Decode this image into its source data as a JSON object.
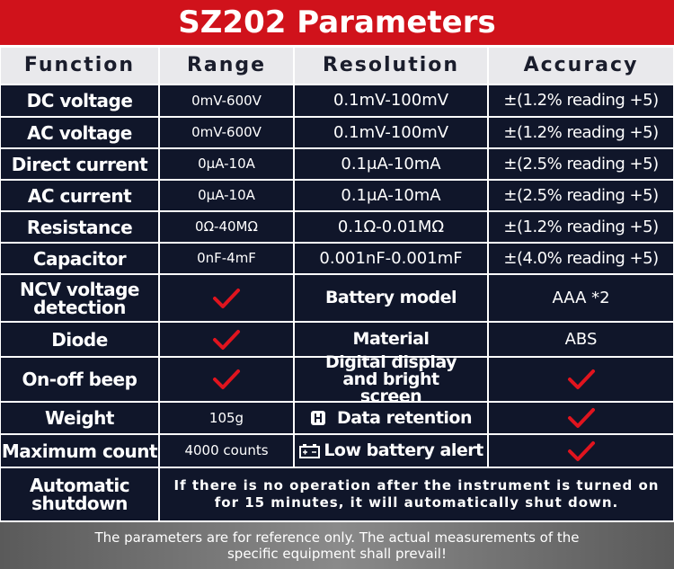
{
  "header": {
    "title": "SZ202 Parameters"
  },
  "table": {
    "columns": [
      "Function",
      "Range",
      "Resolution",
      "Accuracy"
    ],
    "rows": [
      [
        "DC voltage",
        "0mV-600V",
        "0.1mV-100mV",
        "±(1.2% reading +5)"
      ],
      [
        "AC voltage",
        "0mV-600V",
        "0.1mV-100mV",
        "±(1.2% reading +5)"
      ],
      [
        "Direct current",
        "0μA-10A",
        "0.1μA-10mA",
        "±(2.5% reading +5)"
      ],
      [
        "AC current",
        "0μA-10A",
        "0.1μA-10mA",
        "±(2.5% reading +5)"
      ],
      [
        "Resistance",
        "0Ω-40MΩ",
        "0.1Ω-0.01MΩ",
        "±(1.2% reading +5)"
      ],
      [
        "Capacitor",
        "0nF-4mF",
        "0.001nF-0.001mF",
        "±(4.0% reading +5)"
      ]
    ],
    "features": [
      {
        "name": "NCV voltage detection",
        "label": "Battery model",
        "value": "AAA *2"
      },
      {
        "name": "Diode",
        "label": "Material",
        "value": "ABS"
      },
      {
        "name": "On-off beep",
        "label": "Digital display and bright screen"
      },
      {
        "name": "Weight",
        "value": "105g",
        "label": "Data retention"
      },
      {
        "name": "Maximum count",
        "value": "4000 counts",
        "label": "Low battery alert"
      }
    ],
    "shutdown": {
      "name": "Automatic shutdown",
      "text": "If there is no operation after the instrument is turned on for 15 minutes, it will automatically shut down."
    }
  },
  "footer": "The parameters are for reference only. The actual measurements of the specific equipment shall prevail!"
}
